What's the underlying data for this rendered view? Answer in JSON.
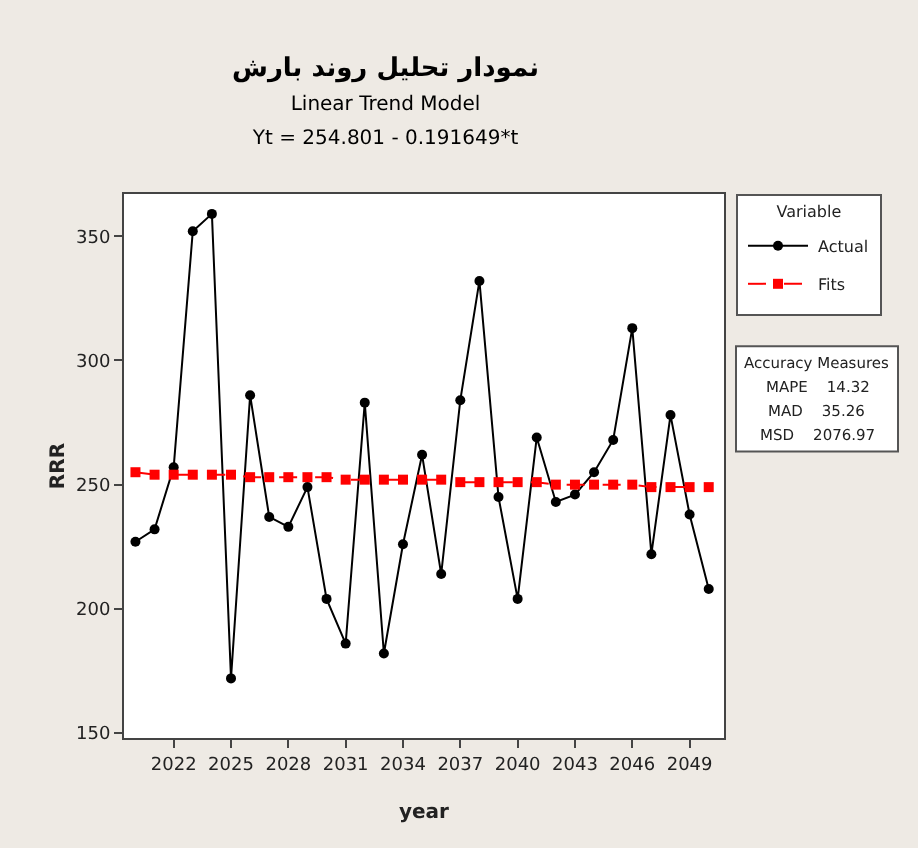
{
  "chart_data": {
    "type": "line",
    "title": "نمودار تحلیل روند بارش",
    "subtitle": "Linear Trend Model\nYt = 254.801 - 0.191649*t",
    "xlabel": "year",
    "ylabel": "RRR",
    "legend_title": "Variable",
    "x": [
      2020,
      2021,
      2022,
      2023,
      2024,
      2025,
      2026,
      2027,
      2028,
      2029,
      2030,
      2031,
      2032,
      2033,
      2034,
      2035,
      2036,
      2037,
      2038,
      2039,
      2040,
      2041,
      2042,
      2043,
      2044,
      2045,
      2046,
      2047,
      2048,
      2049,
      2050
    ],
    "series": [
      {
        "name": "Actual",
        "color": "#000000",
        "marker": "circle",
        "line_style": "solid",
        "values": [
          227,
          232,
          257,
          352,
          359,
          172,
          286,
          237,
          233,
          249,
          204,
          186,
          283,
          182,
          226,
          262,
          214,
          284,
          332,
          245,
          204,
          269,
          243,
          246,
          255,
          268,
          313,
          222,
          278,
          238,
          208
        ]
      },
      {
        "name": "Fits",
        "color": "#ff0000",
        "marker": "square",
        "line_style": "dashed",
        "values": [
          255,
          254,
          254,
          254,
          254,
          254,
          253,
          253,
          253,
          253,
          253,
          252,
          252,
          252,
          252,
          252,
          252,
          251,
          251,
          251,
          251,
          251,
          250,
          250,
          250,
          250,
          250,
          249,
          249,
          249,
          249
        ]
      }
    ],
    "xlim": [
      2019.4,
      2050.8
    ],
    "xticks": [
      2022,
      2025,
      2028,
      2031,
      2034,
      2037,
      2040,
      2043,
      2046,
      2049
    ],
    "ylim": [
      148,
      367
    ],
    "yticks": [
      150,
      200,
      250,
      300,
      350
    ],
    "annotations": [
      "Accuracy Measures",
      "MAPE    14.32",
      "MAD    35.26",
      "MSD    2076.97"
    ],
    "grid": false,
    "legend": "top right"
  }
}
